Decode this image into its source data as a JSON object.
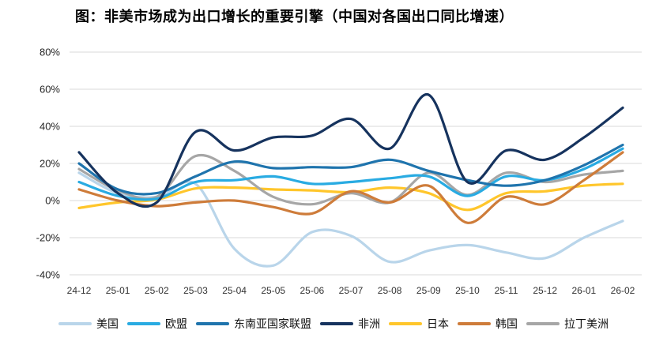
{
  "title": "图：非美市场成为出口增长的重要引擎（中国对各国出口同比增速）",
  "chart_data": {
    "type": "line",
    "title": "图：非美市场成为出口增长的重要引擎（中国对各国出口同比增速）",
    "unit": "%",
    "grid": true,
    "legend_position": "bottom",
    "ylim": [
      -40,
      80
    ],
    "yticks": [
      80,
      60,
      40,
      20,
      0,
      -20,
      -40
    ],
    "ytick_labels": [
      "80%",
      "60%",
      "40%",
      "20%",
      "0%",
      "-20%",
      "-40%"
    ],
    "x": [
      "24-12",
      "25-01",
      "25-02",
      "25-03",
      "25-04",
      "25-05",
      "25-06",
      "25-07",
      "25-08",
      "25-09",
      "25-10",
      "25-11",
      "25-12",
      "26-01",
      "26-02"
    ],
    "series": [
      {
        "name": "美国",
        "color": "#B9D5EA",
        "values": [
          15,
          4,
          2,
          9,
          -26,
          -35,
          -17,
          -19,
          -33,
          -27,
          -24,
          -28,
          -31,
          -20,
          -11
        ]
      },
      {
        "name": "欧盟",
        "color": "#29ABE2",
        "values": [
          10,
          2.5,
          1,
          10,
          11,
          13,
          9,
          10,
          12,
          13,
          2.5,
          13,
          11,
          17,
          28
        ]
      },
      {
        "name": "东南亚国家联盟",
        "color": "#1F74AD",
        "values": [
          20,
          6,
          4,
          13,
          21,
          17.5,
          18,
          18,
          22,
          16,
          11,
          8,
          11,
          19,
          30
        ]
      },
      {
        "name": "非洲",
        "color": "#16335E",
        "values": [
          26,
          4,
          -1,
          37,
          27,
          34,
          35,
          44,
          28,
          57,
          10,
          27,
          22,
          34,
          50
        ]
      },
      {
        "name": "日本",
        "color": "#FFC62B",
        "values": [
          -4,
          -1,
          0.5,
          6.5,
          7,
          6,
          5.5,
          4.5,
          7,
          4,
          -5,
          4,
          5,
          8,
          9
        ]
      },
      {
        "name": "韩国",
        "color": "#CE7C3A",
        "values": [
          6,
          0,
          -3,
          -1,
          0,
          -3.5,
          -7,
          5,
          -1,
          8,
          -12,
          2,
          -2,
          11,
          26
        ]
      },
      {
        "name": "拉丁美洲",
        "color": "#A6A6A6",
        "values": [
          17,
          5.5,
          2,
          24,
          16,
          2,
          -2,
          4,
          -1,
          15,
          3,
          15,
          10,
          14,
          16
        ]
      }
    ]
  }
}
